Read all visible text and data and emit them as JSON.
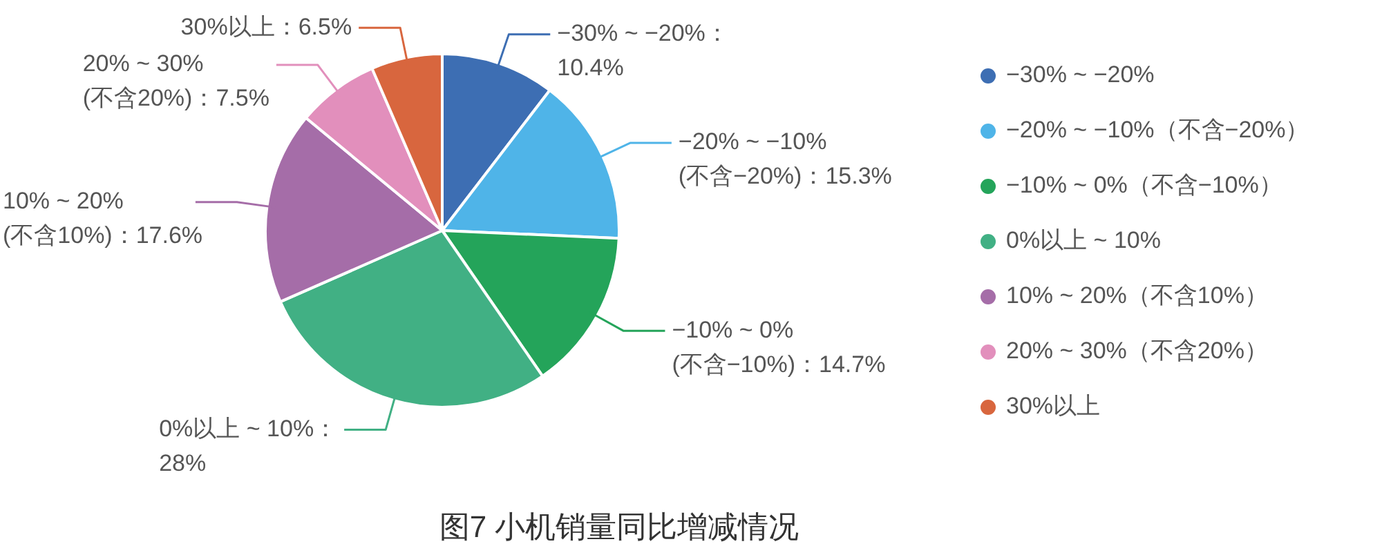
{
  "chart_data": {
    "type": "pie",
    "title": "图7 小机销量同比增减情况",
    "categories": [
      "−30% ~ −20%",
      "−20% ~ −10%（不含−20%）",
      "−10% ~ 0%（不含−10%）",
      "0%以上 ~ 10%",
      "10% ~ 20%（不含10%）",
      "20% ~ 30%（不含20%）",
      "30%以上"
    ],
    "values": [
      10.4,
      15.3,
      14.7,
      28,
      17.6,
      7.5,
      6.5
    ],
    "colors": [
      "#3d6eb3",
      "#4fb4e8",
      "#24a45a",
      "#41b084",
      "#a56da8",
      "#e28fbc",
      "#d8663e"
    ],
    "value_labels": [
      "−30% ~ −20%：\n10.4%",
      "−20% ~ −10%\n(不含−20%)：15.3%",
      "−10% ~ 0%\n(不含−10%)：14.7%",
      "0%以上 ~ 10%：\n28%",
      "10% ~ 20%\n(不含10%)：17.6%",
      "20% ~ 30%\n(不含20%)：7.5%",
      "30%以上：6.5%"
    ],
    "legend": "right"
  }
}
